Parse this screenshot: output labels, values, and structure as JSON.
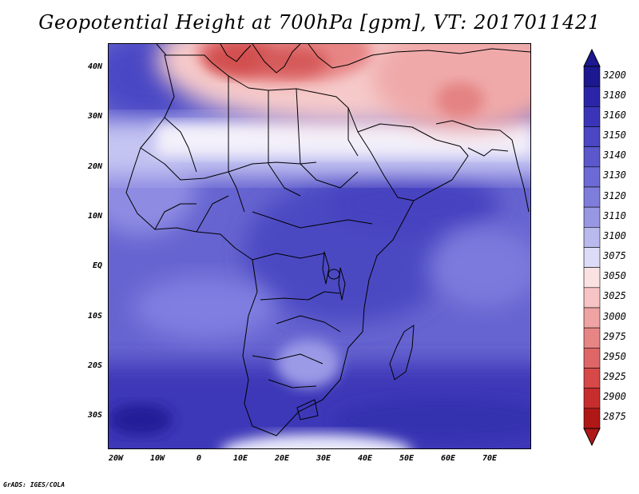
{
  "title": "Geopotential Height at 700hPa [gpm], VT: 2017011421",
  "credit": "GrADS: IGES/COLA",
  "map": {
    "region": "Africa",
    "lon_range": [
      -23,
      80
    ],
    "lat_range": [
      -37,
      45
    ],
    "lat_labels": [
      "40N",
      "30N",
      "20N",
      "10N",
      "EQ",
      "10S",
      "20S",
      "30S"
    ],
    "lat_values": [
      40,
      30,
      20,
      10,
      0,
      -10,
      -20,
      -30
    ],
    "lon_labels": [
      "20W",
      "10W",
      "0",
      "10E",
      "20E",
      "30E",
      "40E",
      "50E",
      "60E",
      "70E"
    ],
    "lon_values": [
      -20,
      -10,
      0,
      10,
      20,
      30,
      40,
      50,
      60,
      70
    ]
  },
  "colorbar": {
    "levels": [
      "3200",
      "3180",
      "3160",
      "3150",
      "3140",
      "3130",
      "3120",
      "3110",
      "3100",
      "3075",
      "3050",
      "3025",
      "3000",
      "2975",
      "2950",
      "2925",
      "2900",
      "2875"
    ],
    "colors": [
      "#1c1890",
      "#2a25a8",
      "#3a35b8",
      "#4a46c4",
      "#5b58cc",
      "#6c6ad4",
      "#7f7ddc",
      "#9897e4",
      "#bab9ee",
      "#dcdcf6",
      "#fbe2e2",
      "#f6c4c4",
      "#efa3a3",
      "#e78585",
      "#df6666",
      "#d74848",
      "#c72d2d",
      "#b01818"
    ]
  }
}
